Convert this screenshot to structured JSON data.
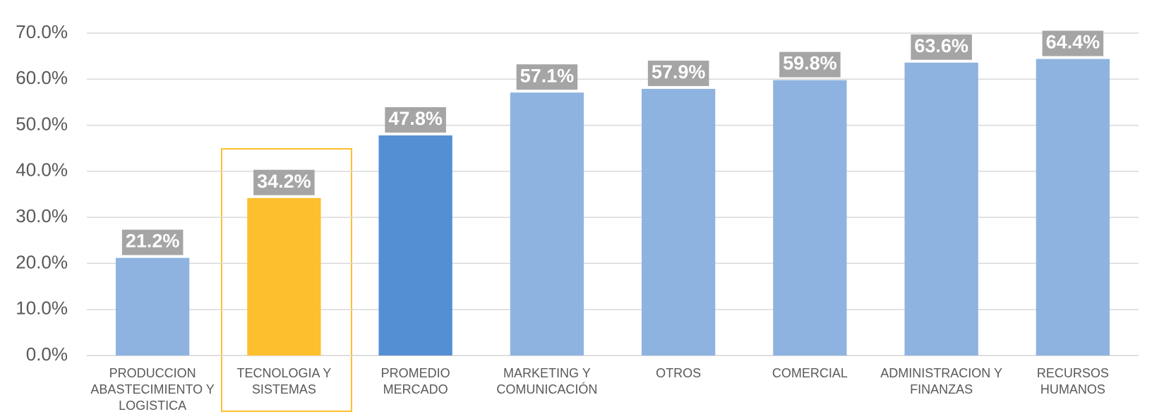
{
  "chart_data": {
    "type": "bar",
    "categories": [
      "PRODUCCION ABASTECIMIENTO Y LOGISTICA",
      "TECNOLOGIA Y SISTEMAS",
      "PROMEDIO MERCADO",
      "MARKETING Y COMUNICACIÓN",
      "OTROS",
      "COMERCIAL",
      "ADMINISTRACION Y FINANZAS",
      "RECURSOS HUMANOS"
    ],
    "values": [
      21.2,
      34.2,
      47.8,
      57.1,
      57.9,
      59.8,
      63.6,
      64.4
    ],
    "value_labels": [
      "21.2%",
      "34.2%",
      "47.8%",
      "57.1%",
      "57.9%",
      "59.8%",
      "63.6%",
      "64.4%"
    ],
    "colors": [
      "#8eb3e0",
      "#fdbf2d",
      "#548fd4",
      "#8eb3e0",
      "#8eb3e0",
      "#8eb3e0",
      "#8eb3e0",
      "#8eb3e0"
    ],
    "ylim": [
      0,
      70
    ],
    "yticks": [
      {
        "value": 0,
        "label": "0.0%"
      },
      {
        "value": 10,
        "label": "10.0%"
      },
      {
        "value": 20,
        "label": "20.0%"
      },
      {
        "value": 30,
        "label": "30.0%"
      },
      {
        "value": 40,
        "label": "40.0%"
      },
      {
        "value": 50,
        "label": "50.0%"
      },
      {
        "value": 60,
        "label": "60.0%"
      },
      {
        "value": 70,
        "label": "70.0%"
      }
    ],
    "grid": true
  }
}
